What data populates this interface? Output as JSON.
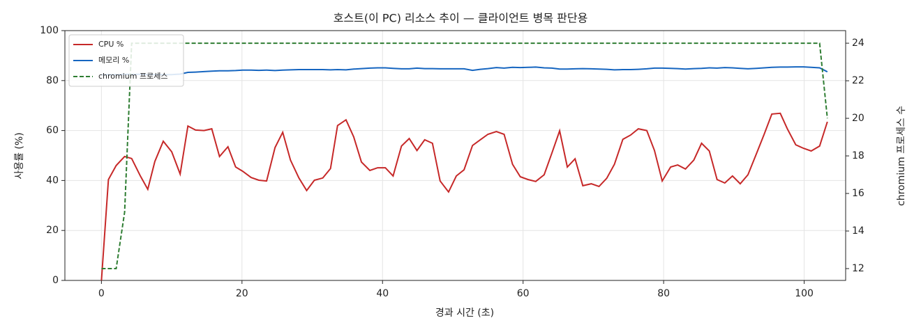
{
  "chart_data": {
    "type": "line",
    "title": "호스트(이 PC) 리소스 추이 — 클라이언트 병목 판단용",
    "x_label": "경과 시간 (초)",
    "y_label": "사용률 (%)",
    "y2_label": "chromium 프로세스 수",
    "x": [
      0,
      1.0,
      2.1,
      3.3,
      4.3,
      5.5,
      6.6,
      7.6,
      8.8,
      10.0,
      11.2,
      12.3,
      13.4,
      14.6,
      15.7,
      16.8,
      18.0,
      19.1,
      20.1,
      21.3,
      22.4,
      23.5,
      24.7,
      25.8,
      26.9,
      28.1,
      29.2,
      30.3,
      31.5,
      32.6,
      33.6,
      34.8,
      35.9,
      37.0,
      38.2,
      39.3,
      40.4,
      41.5,
      42.7,
      43.8,
      44.9,
      46.0,
      47.1,
      48.2,
      49.4,
      50.5,
      51.6,
      52.8,
      53.9,
      55.0,
      56.2,
      57.3,
      58.5,
      59.6,
      60.7,
      61.8,
      63.0,
      64.1,
      65.2,
      66.3,
      67.4,
      68.5,
      69.7,
      70.8,
      71.9,
      73.0,
      74.2,
      75.3,
      76.4,
      77.6,
      78.7,
      79.8,
      81.0,
      82.0,
      83.1,
      84.3,
      85.4,
      86.5,
      87.6,
      88.7,
      89.8,
      90.9,
      92.0,
      93.2,
      94.3,
      95.4,
      96.6,
      97.6,
      98.8,
      99.9,
      101.0,
      102.2,
      103.3
    ],
    "series": [
      {
        "name": "CPU %",
        "color": "#c62828",
        "linestyle": "solid",
        "axis": "y",
        "values": [
          0,
          40.4,
          46,
          49.6,
          48.8,
          42,
          36.5,
          47.6,
          55.7,
          51.5,
          42.6,
          61.8,
          60.2,
          60,
          60.7,
          49.6,
          53.5,
          45.4,
          43.7,
          41.2,
          40.1,
          39.8,
          53.2,
          59.3,
          48.2,
          41,
          36,
          40.1,
          41,
          44.8,
          62,
          64.3,
          57.4,
          47.4,
          44,
          45.1,
          45.1,
          41.8,
          53.8,
          56.8,
          52,
          56.3,
          54.9,
          39.8,
          35.4,
          41.8,
          44.3,
          54,
          56.3,
          58.5,
          59.6,
          58.5,
          46.5,
          41.5,
          40.4,
          39.6,
          42.3,
          51,
          59.9,
          45.4,
          48.7,
          37.9,
          38.7,
          37.6,
          40.9,
          46.5,
          56.5,
          58.2,
          60.7,
          60,
          52,
          39.8,
          45.4,
          46.2,
          44.6,
          48.2,
          54.9,
          51.8,
          40.4,
          39,
          41.8,
          38.7,
          42.3,
          50.7,
          58.5,
          66.6,
          66.9,
          60.7,
          54.3,
          52.9,
          51.8,
          53.8,
          63.5
        ]
      },
      {
        "name": "메모리 %",
        "color": "#1565c0",
        "linestyle": "solid",
        "axis": "y",
        "values": [
          82.3,
          82.4,
          82.4,
          82.5,
          82.5,
          82.5,
          82.4,
          82.4,
          82.4,
          82.4,
          82.6,
          83.3,
          83.4,
          83.6,
          83.8,
          83.9,
          83.9,
          84.0,
          84.2,
          84.2,
          84.1,
          84.2,
          84.0,
          84.2,
          84.3,
          84.4,
          84.4,
          84.4,
          84.4,
          84.3,
          84.4,
          84.3,
          84.6,
          84.8,
          85.0,
          85.1,
          85.1,
          84.9,
          84.7,
          84.7,
          85.0,
          84.8,
          84.8,
          84.7,
          84.7,
          84.7,
          84.7,
          84.1,
          84.5,
          84.8,
          85.2,
          85.0,
          85.3,
          85.2,
          85.3,
          85.4,
          85.1,
          85.0,
          84.6,
          84.6,
          84.7,
          84.8,
          84.7,
          84.6,
          84.5,
          84.3,
          84.4,
          84.4,
          84.5,
          84.7,
          85.0,
          85.0,
          84.9,
          84.8,
          84.6,
          84.8,
          84.9,
          85.1,
          85.0,
          85.2,
          85.1,
          84.9,
          84.7,
          84.9,
          85.1,
          85.3,
          85.4,
          85.4,
          85.5,
          85.5,
          85.3,
          85.1,
          83.5
        ]
      },
      {
        "name": "chromium 프로세스",
        "color": "#2e7d32",
        "linestyle": "dashed",
        "axis": "y2",
        "values": [
          12,
          12,
          12,
          15,
          24,
          24,
          24,
          24,
          24,
          24,
          24,
          24,
          24,
          24,
          24,
          24,
          24,
          24,
          24,
          24,
          24,
          24,
          24,
          24,
          24,
          24,
          24,
          24,
          24,
          24,
          24,
          24,
          24,
          24,
          24,
          24,
          24,
          24,
          24,
          24,
          24,
          24,
          24,
          24,
          24,
          24,
          24,
          24,
          24,
          24,
          24,
          24,
          24,
          24,
          24,
          24,
          24,
          24,
          24,
          24,
          24,
          24,
          24,
          24,
          24,
          24,
          24,
          24,
          24,
          24,
          24,
          24,
          24,
          24,
          24,
          24,
          24,
          24,
          24,
          24,
          24,
          24,
          24,
          24,
          24,
          24,
          24,
          24,
          24,
          24,
          24,
          24,
          20
        ]
      }
    ],
    "xlim": [
      -5.2,
      105.9
    ],
    "xticks": [
      0,
      20,
      40,
      60,
      80,
      100
    ],
    "ylim": [
      0,
      100
    ],
    "yticks": [
      0,
      20,
      40,
      60,
      80,
      100
    ],
    "y2lim": [
      11.37,
      24.67
    ],
    "y2ticks": [
      12,
      14,
      16,
      18,
      20,
      22,
      24
    ],
    "grid": true,
    "legend": "upper left"
  }
}
